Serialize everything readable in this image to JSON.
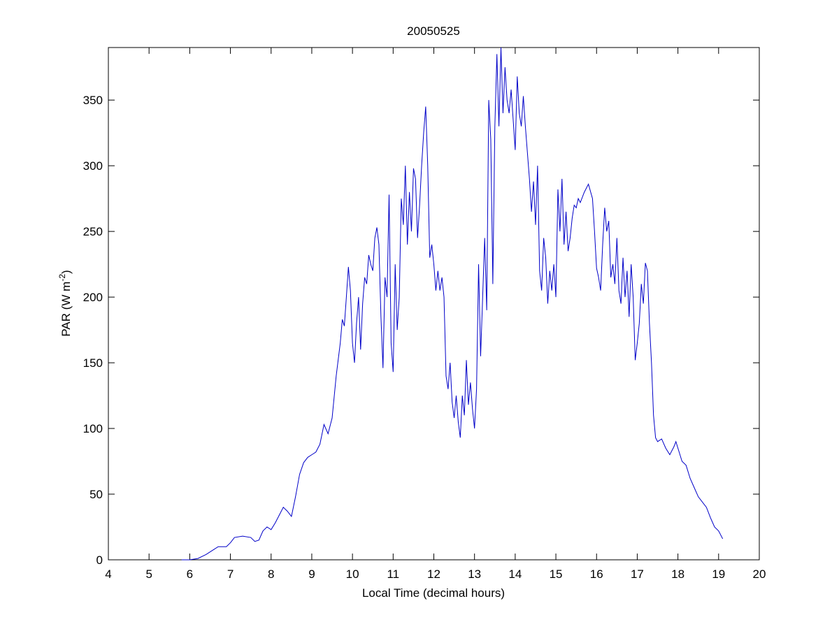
{
  "chart_data": {
    "type": "line",
    "title": "20050525",
    "xlabel": "Local Time (decimal hours)",
    "ylabel": {
      "text": "PAR (W m",
      "sup": "-2",
      "end": ")"
    },
    "xlim": [
      4,
      20
    ],
    "xticks": [
      4,
      5,
      6,
      7,
      8,
      9,
      10,
      11,
      12,
      13,
      14,
      15,
      16,
      17,
      18,
      19,
      20
    ],
    "ylim": [
      0,
      390
    ],
    "yticks": [
      0,
      50,
      100,
      150,
      200,
      250,
      300,
      350
    ],
    "grid": false,
    "series": [
      {
        "color": "#0000c8",
        "x": [
          5.8,
          6.0,
          6.2,
          6.4,
          6.6,
          6.7,
          6.9,
          7.0,
          7.1,
          7.3,
          7.5,
          7.6,
          7.7,
          7.8,
          7.9,
          8.0,
          8.1,
          8.2,
          8.3,
          8.4,
          8.5,
          8.6,
          8.7,
          8.8,
          8.9,
          9.0,
          9.1,
          9.2,
          9.3,
          9.4,
          9.5,
          9.6,
          9.7,
          9.75,
          9.8,
          9.85,
          9.9,
          9.95,
          10.0,
          10.05,
          10.1,
          10.15,
          10.2,
          10.25,
          10.3,
          10.35,
          10.4,
          10.45,
          10.5,
          10.55,
          10.6,
          10.65,
          10.7,
          10.75,
          10.8,
          10.85,
          10.9,
          10.95,
          11.0,
          11.05,
          11.1,
          11.15,
          11.2,
          11.25,
          11.3,
          11.35,
          11.4,
          11.45,
          11.5,
          11.55,
          11.6,
          11.65,
          11.7,
          11.75,
          11.8,
          11.85,
          11.9,
          11.95,
          12.0,
          12.05,
          12.1,
          12.15,
          12.2,
          12.25,
          12.3,
          12.35,
          12.4,
          12.45,
          12.5,
          12.55,
          12.6,
          12.65,
          12.7,
          12.75,
          12.8,
          12.85,
          12.9,
          12.95,
          13.0,
          13.05,
          13.1,
          13.15,
          13.2,
          13.25,
          13.3,
          13.35,
          13.4,
          13.45,
          13.5,
          13.55,
          13.6,
          13.65,
          13.7,
          13.75,
          13.8,
          13.85,
          13.9,
          13.95,
          14.0,
          14.05,
          14.1,
          14.15,
          14.2,
          14.25,
          14.3,
          14.35,
          14.4,
          14.45,
          14.5,
          14.55,
          14.6,
          14.65,
          14.7,
          14.75,
          14.8,
          14.85,
          14.9,
          14.95,
          15.0,
          15.05,
          15.1,
          15.15,
          15.2,
          15.25,
          15.3,
          15.35,
          15.4,
          15.45,
          15.5,
          15.55,
          15.6,
          15.7,
          15.8,
          15.9,
          15.95,
          16.0,
          16.05,
          16.1,
          16.15,
          16.2,
          16.25,
          16.3,
          16.35,
          16.4,
          16.45,
          16.5,
          16.55,
          16.6,
          16.65,
          16.7,
          16.75,
          16.8,
          16.85,
          16.9,
          16.95,
          17.0,
          17.05,
          17.1,
          17.15,
          17.2,
          17.25,
          17.3,
          17.35,
          17.4,
          17.45,
          17.5,
          17.6,
          17.7,
          17.8,
          17.9,
          17.95,
          18.0,
          18.1,
          18.2,
          18.3,
          18.4,
          18.5,
          18.6,
          18.7,
          18.8,
          18.9,
          19.0,
          19.1
        ],
        "values": [
          0,
          0,
          1,
          4,
          8,
          10,
          10,
          13,
          17,
          18,
          17,
          14,
          15,
          22,
          25,
          23,
          28,
          34,
          40,
          37,
          33,
          48,
          65,
          74,
          78,
          80,
          82,
          88,
          103,
          96,
          108,
          140,
          165,
          183,
          178,
          200,
          223,
          205,
          165,
          150,
          180,
          200,
          160,
          195,
          215,
          210,
          232,
          225,
          220,
          245,
          253,
          240,
          185,
          146,
          215,
          200,
          278,
          165,
          143,
          225,
          175,
          200,
          275,
          255,
          300,
          240,
          280,
          250,
          298,
          290,
          245,
          270,
          300,
          325,
          345,
          300,
          230,
          240,
          225,
          205,
          220,
          205,
          215,
          200,
          140,
          130,
          150,
          120,
          108,
          125,
          105,
          93,
          125,
          110,
          152,
          118,
          135,
          115,
          100,
          130,
          225,
          155,
          200,
          245,
          190,
          350,
          320,
          210,
          330,
          385,
          330,
          390,
          340,
          375,
          350,
          340,
          358,
          335,
          312,
          368,
          340,
          330,
          353,
          330,
          310,
          290,
          265,
          288,
          255,
          300,
          220,
          205,
          245,
          230,
          195,
          220,
          205,
          225,
          200,
          282,
          250,
          290,
          240,
          265,
          235,
          245,
          260,
          270,
          268,
          275,
          272,
          280,
          286,
          275,
          250,
          222,
          215,
          205,
          240,
          268,
          250,
          258,
          215,
          225,
          210,
          245,
          205,
          195,
          230,
          200,
          220,
          185,
          225,
          200,
          152,
          165,
          180,
          210,
          195,
          226,
          220,
          180,
          150,
          110,
          93,
          90,
          92,
          85,
          80,
          86,
          90,
          85,
          75,
          72,
          62,
          55,
          48,
          44,
          40,
          32,
          25,
          22,
          16
        ]
      }
    ]
  }
}
